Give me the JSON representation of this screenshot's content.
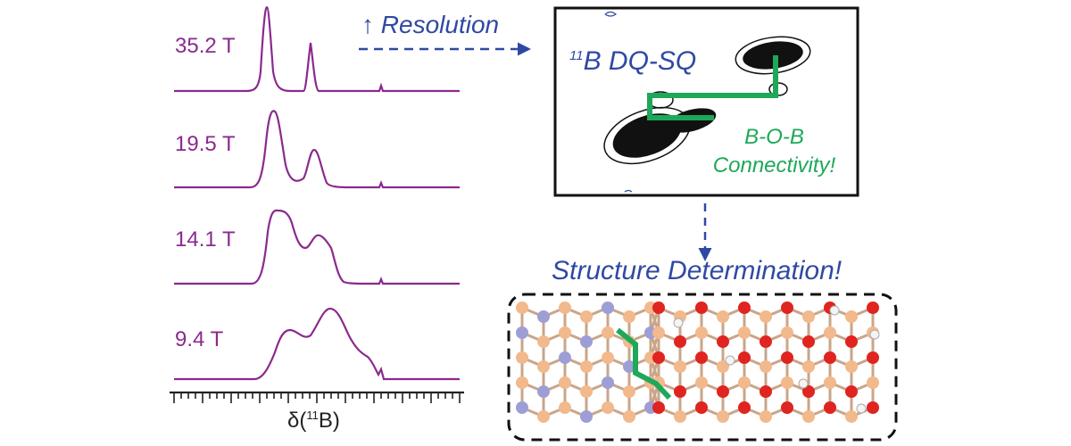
{
  "spectra": {
    "fields": [
      "35.2 T",
      "19.5 T",
      "14.1 T",
      "9.4 T"
    ],
    "axis_label_prefix": "δ(",
    "axis_label_sup": "11",
    "axis_label_suffix": "B)",
    "line_color": "#8a2a8e"
  },
  "resolution_arrow": {
    "label": "↑ Resolution",
    "color": "#2f49a3"
  },
  "dqsq_box": {
    "title_sup": "11",
    "title": "B DQ-SQ",
    "connectivity_line1": "B-O-B",
    "connectivity_line2": "Connectivity!",
    "highlight_color": "#1ea85a"
  },
  "structure": {
    "title": "Structure Determination!",
    "colors": {
      "boron": "#f2b98c",
      "nitrogen": "#9e9ed6",
      "oxygen": "#e0241f",
      "hydrogen": "#f4f4f4",
      "bond_highlight": "#1ea85a"
    }
  }
}
